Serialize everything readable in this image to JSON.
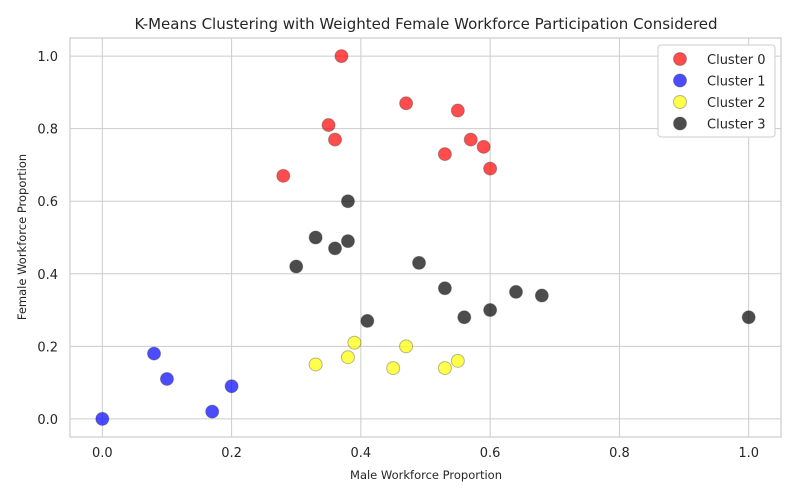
{
  "chart_data": {
    "type": "scatter",
    "title": "K-Means Clustering with Weighted Female Workforce Participation Considered",
    "xlabel": "Male Workforce Proportion",
    "ylabel": "Female Workforce Proportion",
    "xlim": [
      -0.05,
      1.05
    ],
    "ylim": [
      -0.05,
      1.05
    ],
    "xticks": [
      "0.0",
      "0.2",
      "0.4",
      "0.6",
      "0.8",
      "1.0"
    ],
    "yticks": [
      "0.0",
      "0.2",
      "0.4",
      "0.6",
      "0.8",
      "1.0"
    ],
    "grid": true,
    "legend_position": "top-right",
    "series": [
      {
        "name": "Cluster 0",
        "color": "#ff0000",
        "points": [
          [
            0.37,
            1.0
          ],
          [
            0.47,
            0.87
          ],
          [
            0.55,
            0.85
          ],
          [
            0.35,
            0.81
          ],
          [
            0.36,
            0.77
          ],
          [
            0.57,
            0.77
          ],
          [
            0.59,
            0.75
          ],
          [
            0.53,
            0.73
          ],
          [
            0.6,
            0.69
          ],
          [
            0.28,
            0.67
          ]
        ]
      },
      {
        "name": "Cluster 1",
        "color": "#0000ff",
        "points": [
          [
            0.08,
            0.18
          ],
          [
            0.1,
            0.11
          ],
          [
            0.2,
            0.09
          ],
          [
            0.17,
            0.02
          ],
          [
            0.0,
            0.0
          ]
        ]
      },
      {
        "name": "Cluster 2",
        "color": "#ffff00",
        "points": [
          [
            0.39,
            0.21
          ],
          [
            0.47,
            0.2
          ],
          [
            0.38,
            0.17
          ],
          [
            0.55,
            0.16
          ],
          [
            0.33,
            0.15
          ],
          [
            0.45,
            0.14
          ],
          [
            0.53,
            0.14
          ]
        ]
      },
      {
        "name": "Cluster 3",
        "color": "#000000",
        "points": [
          [
            0.38,
            0.6
          ],
          [
            0.33,
            0.5
          ],
          [
            0.38,
            0.49
          ],
          [
            0.36,
            0.47
          ],
          [
            0.49,
            0.43
          ],
          [
            0.3,
            0.42
          ],
          [
            0.53,
            0.36
          ],
          [
            0.64,
            0.35
          ],
          [
            0.68,
            0.34
          ],
          [
            0.6,
            0.3
          ],
          [
            0.56,
            0.28
          ],
          [
            0.41,
            0.27
          ],
          [
            1.0,
            0.28
          ]
        ]
      }
    ]
  }
}
